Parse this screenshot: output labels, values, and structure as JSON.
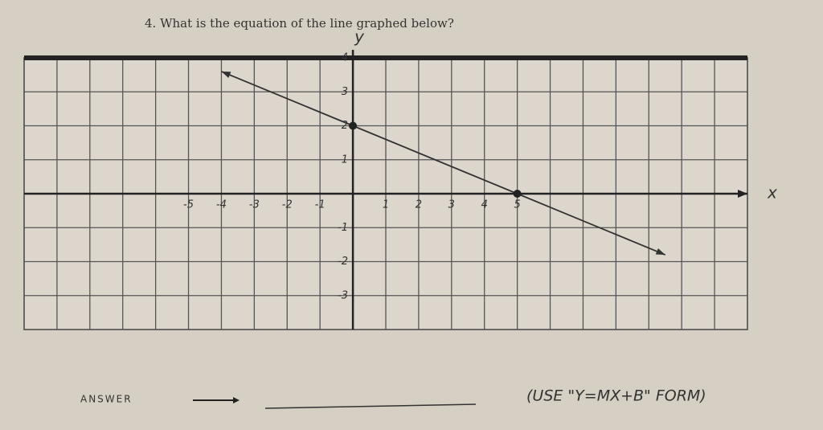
{
  "chart_data": {
    "type": "line",
    "title": "4. What is the equation of the line graphed below?",
    "x_label": "x",
    "y_label": "y",
    "xlim": [
      -10,
      12
    ],
    "ylim": [
      -4,
      4
    ],
    "xticks": [
      -5,
      -4,
      -3,
      -2,
      -1,
      1,
      2,
      3,
      4,
      5
    ],
    "yticks": [
      -3,
      -2,
      -1,
      1,
      2,
      3,
      4
    ],
    "grid": true,
    "series": [
      {
        "x": [
          -4,
          0,
          5,
          9.5
        ],
        "values": [
          3.6,
          2,
          0,
          -1.8
        ],
        "color": "#333333"
      }
    ],
    "points": {
      "x": [
        0,
        5
      ],
      "values": [
        2,
        0
      ]
    }
  },
  "answer": {
    "label": "ANSWER",
    "hint": "(USE \"Y=MX+B\" FORM)"
  }
}
